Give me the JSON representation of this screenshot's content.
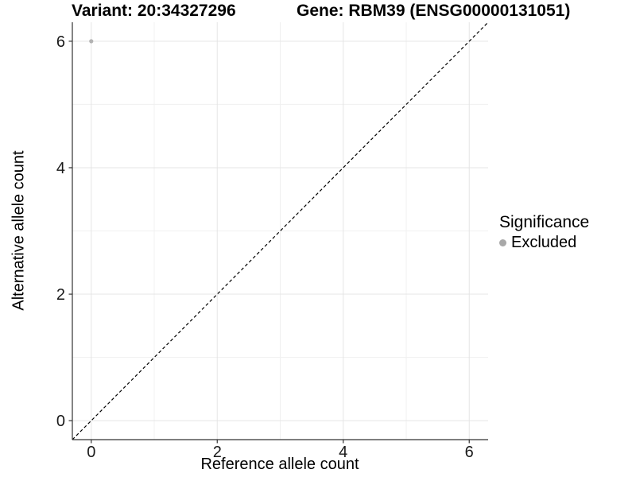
{
  "chart_data": {
    "type": "scatter",
    "title_left": "Variant: 20:34327296",
    "title_right": "Gene: RBM39 (ENSG00000131051)",
    "xlabel": "Reference allele count",
    "ylabel": "Alternative allele count",
    "xlim": [
      -0.3,
      6.3
    ],
    "ylim": [
      -0.3,
      6.3
    ],
    "x_ticks": [
      0,
      2,
      4,
      6
    ],
    "y_ticks": [
      0,
      2,
      4,
      6
    ],
    "x_minor_ticks": [
      1,
      3,
      5
    ],
    "y_minor_ticks": [
      1,
      3,
      5
    ],
    "grid": "on",
    "legend_position": "right",
    "series": [
      {
        "name": "Excluded",
        "color": "#b3b3b3",
        "points": [
          {
            "x": 0,
            "y": 6
          }
        ]
      }
    ],
    "reference_line": {
      "equation": "y = x",
      "style": "dashed",
      "color": "#000000"
    },
    "legend": {
      "title": "Significance",
      "items": [
        {
          "label": "Excluded",
          "color": "#a8a8a8"
        }
      ]
    },
    "colors": {
      "point": "#b3b3b3",
      "axis_line": "#333333",
      "grid_major": "#e5e5e5",
      "grid_minor": "#f0f0f0",
      "background": "#ffffff"
    }
  }
}
